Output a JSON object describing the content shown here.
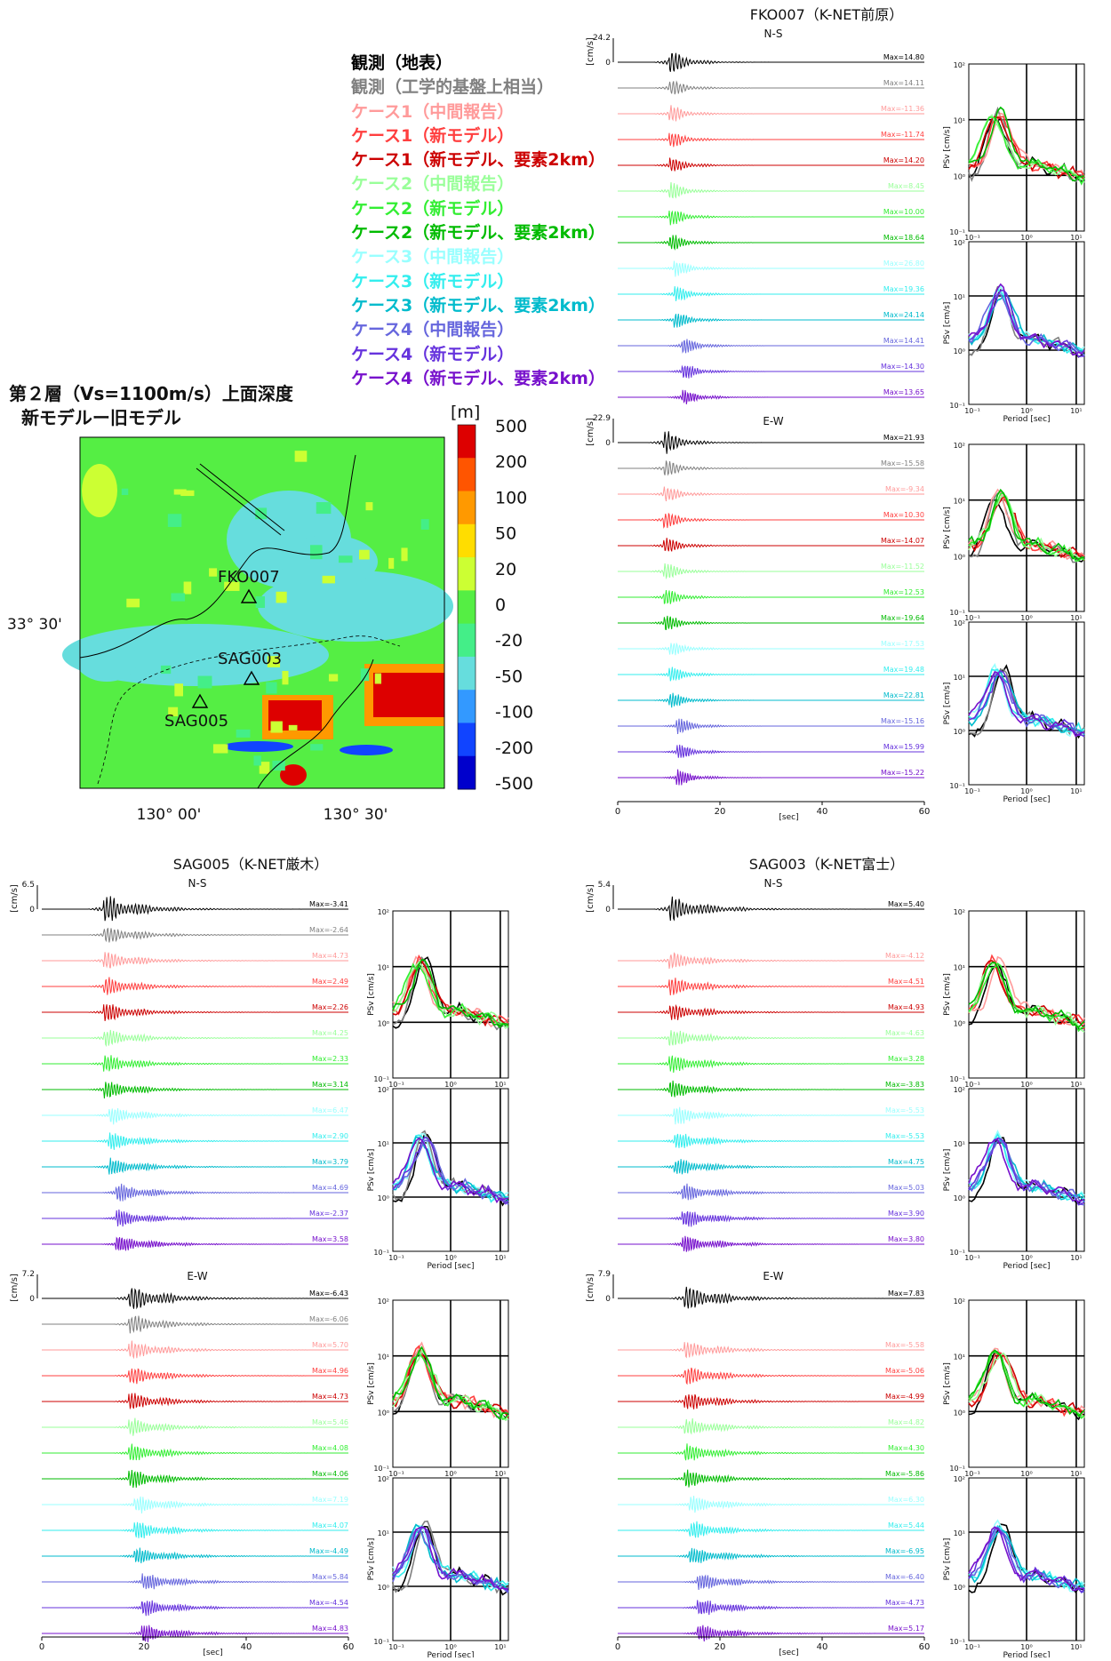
{
  "legend_items": [
    {
      "label": "観測（地表）",
      "color": "#000000"
    },
    {
      "label": "観測（工学的基盤上相当）",
      "color": "#808080"
    },
    {
      "label": "ケース1（中間報告）",
      "color": "#FF9A9A"
    },
    {
      "label": "ケース1（新モデル）",
      "color": "#FF3F3F"
    },
    {
      "label": "ケース1（新モデル、要素2km）",
      "color": "#CC0000"
    },
    {
      "label": "ケース2（中間報告）",
      "color": "#99FF99"
    },
    {
      "label": "ケース2（新モデル）",
      "color": "#33EE33"
    },
    {
      "label": "ケース2（新モデル、要素2km）",
      "color": "#00BB00"
    },
    {
      "label": "ケース3（中間報告）",
      "color": "#99FFFF"
    },
    {
      "label": "ケース3（新モデル）",
      "color": "#33EEEE"
    },
    {
      "label": "ケース3（新モデル、要素2km）",
      "color": "#00BBCC"
    },
    {
      "label": "ケース4（中間報告）",
      "color": "#6666DD"
    },
    {
      "label": "ケース4（新モデル）",
      "color": "#6633DD"
    },
    {
      "label": "ケース4（新モデル、要素2km）",
      "color": "#7711CC"
    }
  ],
  "map": {
    "title_line1": "第２層（Vs=1100m/s）上面深度",
    "title_line2": "新モデルー旧モデル",
    "unit": "[m]",
    "colorbar_ticks": [
      "500",
      "200",
      "100",
      "50",
      "20",
      "0",
      "-20",
      "-50",
      "-100",
      "-200",
      "-500"
    ],
    "colorbar_colors": [
      "#DD0000",
      "#FF5500",
      "#FF9900",
      "#FFDD00",
      "#CCFF33",
      "#55EE44",
      "#44EE88",
      "#66DDDD",
      "#3399FF",
      "#1144FF",
      "#0000CC"
    ],
    "lat_label": "33° 30'",
    "lon_labels": [
      "130° 00'",
      "130° 30'"
    ],
    "stations": [
      "FKO007",
      "SAG003",
      "SAG005"
    ]
  },
  "chart_data": [
    {
      "type": "line",
      "station": "FKO007（K-NET前原）",
      "component": "N-S",
      "y_unit": "[cm/s]",
      "scale_value": "24.2",
      "x_unit": "[sec]",
      "x_ticks": [
        "0",
        "20",
        "40",
        "60"
      ],
      "xlim": [
        0,
        60
      ],
      "trace_onset_sec": 10,
      "max_labels": [
        "Max=14.80",
        "Max=14.11",
        "Max=-11.36",
        "Max=-11.74",
        "Max=14.20",
        "Max=8.45",
        "Max=10.00",
        "Max=18.64",
        "Max=26.80",
        "Max=19.36",
        "Max=24.14",
        "Max=14.41",
        "Max=-14.30",
        "Max=13.65"
      ],
      "spectra": {
        "ylabel": "PSv [cm/s]",
        "xlabel": "Period [sec]",
        "y_ticks": [
          "10²",
          "10¹",
          "10⁰",
          "10⁻¹"
        ],
        "x_ticks": [
          "10⁻¹",
          "10⁰",
          "10¹"
        ]
      }
    },
    {
      "type": "line",
      "component": "E-W",
      "y_unit": "[cm/s]",
      "scale_value": "22.9",
      "x_unit": "[sec]",
      "x_ticks": [
        "0",
        "20",
        "40",
        "60"
      ],
      "xlim": [
        0,
        60
      ],
      "trace_onset_sec": 9,
      "max_labels": [
        "Max=21.93",
        "Max=-15.58",
        "Max=-9.34",
        "Max=10.30",
        "Max=-14.07",
        "Max=-11.52",
        "Max=12.53",
        "Max=-19.64",
        "Max=-17.53",
        "Max=19.48",
        "Max=22.81",
        "Max=-15.16",
        "Max=15.99",
        "Max=-15.22"
      ],
      "spectra": {
        "ylabel": "PSv [cm/s]",
        "xlabel": "Period [sec]",
        "y_ticks": [
          "10²",
          "10¹",
          "10⁰",
          "10⁻¹"
        ],
        "x_ticks": [
          "10⁻¹",
          "10⁰",
          "10¹"
        ]
      }
    },
    {
      "type": "line",
      "station": "SAG005（K-NET厳木）",
      "component": "N-S",
      "y_unit": "[cm/s]",
      "scale_value": "6.5",
      "x_unit": "[sec]",
      "x_ticks": [
        "0",
        "20",
        "40",
        "60"
      ],
      "xlim": [
        0,
        60
      ],
      "trace_onset_sec": 12,
      "max_labels": [
        "Max=-3.41",
        "Max=-2.64",
        "Max=4.73",
        "Max=2.49",
        "Max=2.26",
        "Max=4.25",
        "Max=2.33",
        "Max=3.14",
        "Max=6.47",
        "Max=2.90",
        "Max=3.79",
        "Max=4.69",
        "Max=-2.37",
        "Max=3.58"
      ],
      "spectra": {
        "ylabel": "PSv [cm/s]",
        "xlabel": "Period [sec]",
        "y_ticks": [
          "10²",
          "10¹",
          "10⁰",
          "10⁻¹"
        ],
        "x_ticks": [
          "10⁻¹",
          "10⁰",
          "10¹"
        ]
      }
    },
    {
      "type": "line",
      "component": "E-W",
      "y_unit": "[cm/s]",
      "scale_value": "7.2",
      "x_unit": "[sec]",
      "x_ticks": [
        "0",
        "20",
        "40",
        "60"
      ],
      "xlim": [
        0,
        60
      ],
      "trace_onset_sec": 17,
      "max_labels": [
        "Max=-6.43",
        "Max=-6.06",
        "Max=5.70",
        "Max=4.96",
        "Max=4.73",
        "Max=5.46",
        "Max=4.08",
        "Max=4.06",
        "Max=7.19",
        "Max=4.07",
        "Max=-4.49",
        "Max=5.84",
        "Max=-4.54",
        "Max=4.83"
      ],
      "spectra": {
        "ylabel": "PSv [cm/s]",
        "xlabel": "Period [sec]",
        "y_ticks": [
          "10²",
          "10¹",
          "10⁰",
          "10⁻¹"
        ],
        "x_ticks": [
          "10⁻¹",
          "10⁰",
          "10¹"
        ]
      }
    },
    {
      "type": "line",
      "station": "SAG003（K-NET富士）",
      "component": "N-S",
      "y_unit": "[cm/s]",
      "scale_value": "5.4",
      "x_unit": "[sec]",
      "x_ticks": [
        "0",
        "20",
        "40",
        "60"
      ],
      "xlim": [
        0,
        60
      ],
      "trace_onset_sec": 10,
      "max_labels": [
        "Max=5.40",
        "",
        "Max=-4.12",
        "Max=4.51",
        "Max=4.93",
        "Max=-4.63",
        "Max=3.28",
        "Max=-3.83",
        "Max=-5.53",
        "Max=-5.53",
        "Max=4.75",
        "Max=5.03",
        "Max=3.90",
        "Max=3.80"
      ],
      "spectra": {
        "ylabel": "PSv [cm/s]",
        "xlabel": "Period [sec]",
        "y_ticks": [
          "10²",
          "10¹",
          "10⁰",
          "10⁻¹"
        ],
        "x_ticks": [
          "10⁻¹",
          "10⁰",
          "10¹"
        ]
      }
    },
    {
      "type": "line",
      "component": "E-W",
      "y_unit": "[cm/s]",
      "scale_value": "7.9",
      "x_unit": "[sec]",
      "x_ticks": [
        "0",
        "20",
        "40",
        "60"
      ],
      "xlim": [
        0,
        60
      ],
      "trace_onset_sec": 13,
      "max_labels": [
        "Max=7.83",
        "",
        "Max=-5.58",
        "Max=-5.06",
        "Max=-4.99",
        "Max=4.82",
        "Max=4.30",
        "Max=-5.86",
        "Max=6.30",
        "Max=5.44",
        "Max=-6.95",
        "Max=-6.40",
        "Max=-4.73",
        "Max=5.17"
      ],
      "spectra": {
        "ylabel": "PSv [cm/s]",
        "xlabel": "Period [sec]",
        "y_ticks": [
          "10²",
          "10¹",
          "10⁰",
          "10⁻¹"
        ],
        "x_ticks": [
          "10⁻¹",
          "10⁰",
          "10¹"
        ]
      }
    }
  ]
}
